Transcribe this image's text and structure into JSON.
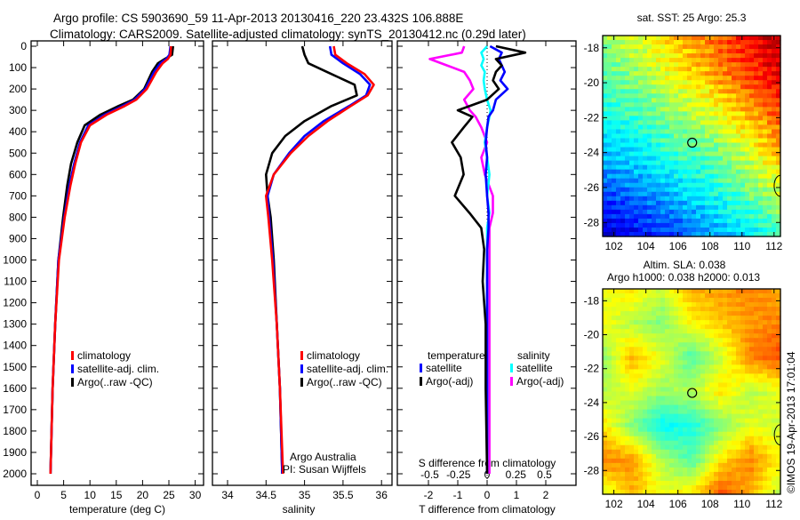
{
  "chart_data": [
    {
      "type": "line",
      "panel": "temperature",
      "title": [
        "Argo profile: CS 5903690_59 11-Apr-2013 20130416_220 23.432S 106.888E",
        "Climatology: CARS2009. Satellite-adjusted climatology: synTS_20130412.nc (0.29d later)"
      ],
      "xlabel": "temperature (deg C)",
      "xticks": [
        "0",
        "5",
        "10",
        "15",
        "20",
        "25",
        "30"
      ],
      "xtick_values": [
        0,
        5,
        10,
        15,
        20,
        25,
        30
      ],
      "yticks": [
        "0",
        "100",
        "200",
        "300",
        "400",
        "500",
        "600",
        "700",
        "800",
        "900",
        "1000",
        "1100",
        "1200",
        "1300",
        "1400",
        "1500",
        "1600",
        "1700",
        "1800",
        "1900",
        "2000"
      ],
      "ylim": [
        2050,
        -20
      ],
      "legend": [
        "climatology",
        "satellite-adj. clim.",
        "Argo(..raw -QC)"
      ],
      "depth": [
        0,
        40,
        60,
        80,
        120,
        200,
        250,
        280,
        320,
        370,
        450,
        550,
        650,
        800,
        1000,
        1300,
        1600,
        2000
      ],
      "series": [
        {
          "name": "climatology",
          "color": "#ff0000",
          "values": [
            25.4,
            25.3,
            24.8,
            23.8,
            22.6,
            20.8,
            18.8,
            16.6,
            13.2,
            10,
            8.3,
            7.2,
            6.3,
            5.2,
            4.1,
            3.4,
            2.9,
            2.5
          ]
        },
        {
          "name": "satellite-adj. clim.",
          "color": "#0000ff",
          "values": [
            25.3,
            25.1,
            24.5,
            23.4,
            22.2,
            20.5,
            18.5,
            16.2,
            12.8,
            9.7,
            8.1,
            7.0,
            6.1,
            5.1,
            4.0,
            3.4,
            2.9,
            2.5
          ]
        },
        {
          "name": "Argo(..raw -QC)",
          "color": "#000000",
          "values": [
            25.8,
            25.6,
            24.2,
            22.9,
            21.8,
            20.3,
            18.2,
            15.4,
            12.0,
            9.0,
            7.6,
            6.4,
            5.7,
            4.9,
            4.0,
            3.4,
            2.9,
            2.5
          ]
        }
      ]
    },
    {
      "type": "line",
      "panel": "salinity",
      "xlabel": "salinity",
      "xticks": [
        "34",
        "34.5",
        "35",
        "35.5",
        "36"
      ],
      "xtick_values": [
        34,
        34.5,
        35,
        35.5,
        36
      ],
      "legend": [
        "climatology",
        "satellite-adj. clim.",
        "Argo(..raw -QC)"
      ],
      "annotation": [
        "Argo Australia",
        "PI: Susan Wijffels"
      ],
      "depth": [
        0,
        40,
        80,
        130,
        180,
        230,
        280,
        350,
        420,
        500,
        600,
        700,
        800,
        1000,
        1300,
        1600,
        2000
      ],
      "series": [
        {
          "name": "climatology",
          "color": "#ff0000",
          "values": [
            35.38,
            35.4,
            35.55,
            35.78,
            35.9,
            35.82,
            35.6,
            35.3,
            35.05,
            34.82,
            34.6,
            34.5,
            34.53,
            34.58,
            34.64,
            34.68,
            34.72
          ]
        },
        {
          "name": "satellite-adj. clim.",
          "color": "#0000ff",
          "values": [
            35.33,
            35.35,
            35.5,
            35.72,
            35.85,
            35.8,
            35.58,
            35.25,
            35.0,
            34.8,
            34.6,
            34.52,
            34.54,
            34.59,
            34.64,
            34.68,
            34.71
          ]
        },
        {
          "name": "Argo(..raw -QC)",
          "color": "#000000",
          "values": [
            34.97,
            35.0,
            35.05,
            35.35,
            35.65,
            35.68,
            35.35,
            35.0,
            34.75,
            34.58,
            34.5,
            34.52,
            34.56,
            34.6,
            34.64,
            34.68,
            34.71
          ]
        }
      ]
    },
    {
      "type": "line",
      "panel": "difference",
      "xlabel": "T difference from climatology",
      "xlabel2": "S difference from climatology",
      "xticks": [
        "-2",
        "-1",
        "0",
        "1",
        "2"
      ],
      "xtick_values": [
        -2,
        -1,
        0,
        1,
        2
      ],
      "xticks2": [
        "-0.5",
        "-0.25",
        "0",
        "0.25",
        "0.5"
      ],
      "xtick2_values": [
        -0.5,
        -0.25,
        0,
        0.25,
        0.5
      ],
      "legend_temperature": {
        "title": "temperature",
        "items": [
          "satellite",
          "Argo(-adj)"
        ]
      },
      "legend_salinity": {
        "title": "salinity",
        "items": [
          "satellite",
          "Argo(-adj)"
        ]
      },
      "depth": [
        0,
        30,
        60,
        90,
        120,
        160,
        200,
        250,
        300,
        330,
        380,
        450,
        520,
        600,
        700,
        780,
        850,
        950,
        1100,
        1300,
        1600,
        2000
      ],
      "series": [
        {
          "name": "T satellite",
          "color": "#0000ff",
          "values": [
            0.1,
            0.5,
            0.4,
            0.5,
            0.6,
            0.45,
            0.7,
            0.3,
            0.2,
            0.05,
            0.0,
            -0.05,
            0,
            -0.05,
            0,
            0.05,
            0.05,
            0,
            0,
            0,
            0,
            0
          ]
        },
        {
          "name": "T Argo(-adj)",
          "color": "#000000",
          "values": [
            0.3,
            1.3,
            0.3,
            0.5,
            0.3,
            0.2,
            0.4,
            0.0,
            -1.0,
            -0.5,
            -0.8,
            -1.2,
            -0.9,
            -0.8,
            -1.1,
            -0.6,
            -0.2,
            -0.1,
            -0.15,
            -0.05,
            -0.05,
            0
          ]
        },
        {
          "name": "S satellite",
          "color": "#00ffff",
          "values": [
            0,
            -0.05,
            -0.03,
            -0.05,
            -0.02,
            -0.03,
            -0.02,
            0.0,
            0.03,
            0.02,
            0.0,
            -0.02,
            0.0,
            0.02,
            0.0,
            0.02,
            0.0,
            0,
            0,
            0,
            0,
            0
          ]
        },
        {
          "name": "S Argo(-adj)",
          "color": "#ff00ff",
          "values": [
            -0.2,
            -0.22,
            -0.5,
            -0.35,
            -0.2,
            -0.15,
            -0.12,
            -0.2,
            -0.15,
            -0.1,
            -0.05,
            0.0,
            -0.05,
            -0.02,
            0.05,
            0.05,
            0.02,
            0.02,
            0.02,
            0.02,
            0.02,
            0.02
          ]
        }
      ]
    },
    {
      "type": "heatmap",
      "panel": "sst-map",
      "title": "sat. SST: 25 Argo: 25.3",
      "xticks": [
        "102",
        "104",
        "106",
        "108",
        "110",
        "112"
      ],
      "xtick_values": [
        102,
        104,
        106,
        108,
        110,
        112
      ],
      "yticks": [
        "-18",
        "-20",
        "-22",
        "-24",
        "-26",
        "-28"
      ],
      "ytick_values": [
        -18,
        -20,
        -22,
        -24,
        -26,
        -28
      ],
      "lon_range": [
        101.3,
        112.4
      ],
      "lat_range": [
        -17.3,
        -28.8
      ],
      "clim": [
        22.3,
        28.2
      ],
      "grid": [
        [
          25.4,
          25.8,
          26.3,
          26.8,
          27.4,
          27.9
        ],
        [
          25.0,
          25.4,
          25.9,
          26.4,
          27.0,
          27.6
        ],
        [
          24.6,
          24.9,
          25.3,
          25.7,
          26.3,
          27.0
        ],
        [
          24.1,
          24.4,
          24.8,
          25.0,
          25.6,
          26.4
        ],
        [
          23.4,
          23.7,
          24.1,
          24.5,
          25.0,
          25.6
        ],
        [
          22.7,
          23.0,
          23.4,
          23.9,
          24.3,
          24.8
        ]
      ],
      "marker": {
        "lon": 106.888,
        "lat": -23.432
      }
    },
    {
      "type": "heatmap",
      "panel": "sla-map",
      "title": [
        "Altim. SLA: 0.038",
        "Argo h1000: 0.038 h2000: 0.013"
      ],
      "xticks": [
        "102",
        "104",
        "106",
        "108",
        "110",
        "112"
      ],
      "xtick_values": [
        102,
        104,
        106,
        108,
        110,
        112
      ],
      "yticks": [
        "-18",
        "-20",
        "-22",
        "-24",
        "-26",
        "-28"
      ],
      "ytick_values": [
        -18,
        -20,
        -22,
        -24,
        -26,
        -28
      ],
      "lon_range": [
        101.3,
        112.4
      ],
      "lat_range": [
        -17.3,
        -29.4
      ],
      "clim": [
        -0.2,
        0.2
      ],
      "grid": [
        [
          0.04,
          0.06,
          0.03,
          0.08,
          0.09,
          0.1,
          0.08
        ],
        [
          0.05,
          0.02,
          0.0,
          0.05,
          0.07,
          0.09,
          0.1
        ],
        [
          0.0,
          0.08,
          0.04,
          -0.02,
          0.03,
          0.1,
          0.12
        ],
        [
          0.02,
          0.04,
          0.01,
          0.02,
          0.06,
          0.02,
          0.04
        ],
        [
          0.06,
          0.0,
          -0.05,
          -0.04,
          0.0,
          0.04,
          0.03
        ],
        [
          0.1,
          0.09,
          0.02,
          -0.02,
          0.06,
          0.1,
          0.05
        ],
        [
          0.03,
          0.08,
          0.04,
          0.06,
          0.12,
          0.08,
          0.02
        ]
      ],
      "marker": {
        "lon": 106.888,
        "lat": -23.432
      }
    }
  ],
  "credit": "©IMOS 19-Apr-2013 17:01:04"
}
